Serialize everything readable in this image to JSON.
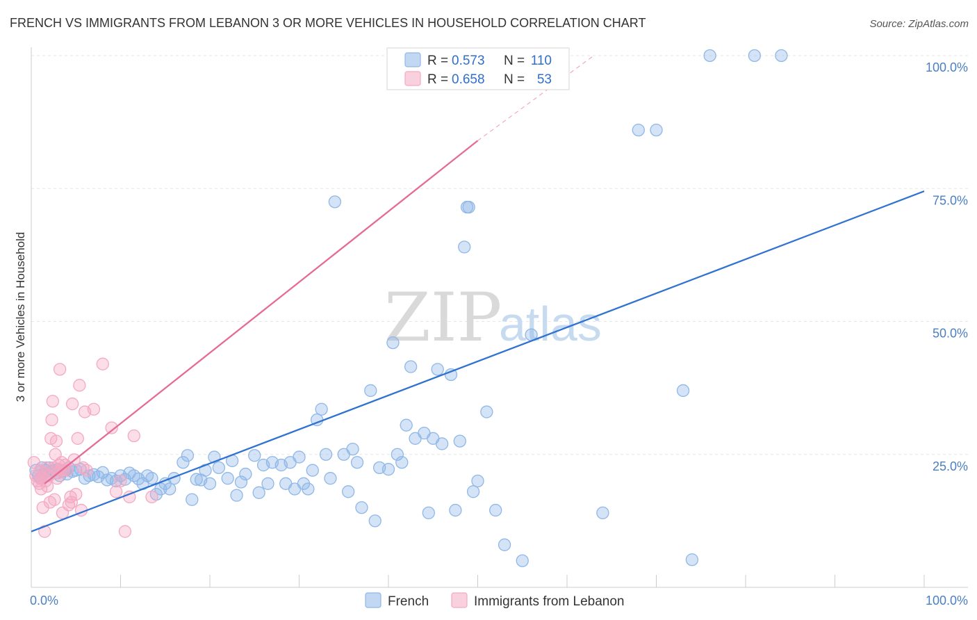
{
  "chart_data": {
    "type": "scatter",
    "title": "FRENCH VS IMMIGRANTS FROM LEBANON 3 OR MORE VEHICLES IN HOUSEHOLD CORRELATION CHART",
    "source": "Source: ZipAtlas.com",
    "ylabel": "3 or more Vehicles in Household",
    "xlabel": "",
    "xlim": [
      0,
      100
    ],
    "ylim": [
      0,
      100
    ],
    "x_tick_labels": {
      "left": "0.0%",
      "right": "100.0%"
    },
    "y_ticks": [
      {
        "value": 25,
        "label": "25.0%"
      },
      {
        "value": 50,
        "label": "50.0%"
      },
      {
        "value": 75,
        "label": "75.0%"
      },
      {
        "value": 100,
        "label": "100.0%"
      }
    ],
    "grid": true,
    "watermark": {
      "zip": "ZIP",
      "atlas": "atlas"
    },
    "legend_position": "top-center",
    "stats": [
      {
        "series": "French",
        "r_label": "R =",
        "r": "0.573",
        "n_label": "N =",
        "n": "110"
      },
      {
        "series": "Immigrants from Lebanon",
        "r_label": "R =",
        "r": "0.658",
        "n_label": "N =",
        "n": "53"
      }
    ],
    "series": [
      {
        "name": "French",
        "color": "#8fb7e8",
        "line_color": "#2f72d0",
        "trend": {
          "x": [
            0,
            100
          ],
          "y": [
            10.5,
            74.5
          ]
        },
        "points": [
          [
            0.5,
            22
          ],
          [
            0.8,
            21
          ],
          [
            1,
            20.5
          ],
          [
            1.2,
            22.5
          ],
          [
            1.4,
            21.5
          ],
          [
            1.6,
            22
          ],
          [
            1.8,
            21
          ],
          [
            2,
            22.5
          ],
          [
            2.2,
            21.8
          ],
          [
            2.5,
            22
          ],
          [
            2.8,
            21.5
          ],
          [
            3,
            22.2
          ],
          [
            3.2,
            21
          ],
          [
            3.5,
            21.8
          ],
          [
            3.8,
            22
          ],
          [
            4,
            21.3
          ],
          [
            4.2,
            22.5
          ],
          [
            4.6,
            21.8
          ],
          [
            5,
            22
          ],
          [
            5.5,
            22.2
          ],
          [
            6,
            20.5
          ],
          [
            6.5,
            21
          ],
          [
            7,
            21.2
          ],
          [
            7.5,
            20.8
          ],
          [
            8,
            21.6
          ],
          [
            8.5,
            20.2
          ],
          [
            9,
            20.5
          ],
          [
            9.5,
            20
          ],
          [
            10,
            21
          ],
          [
            10.5,
            20.3
          ],
          [
            11,
            21.5
          ],
          [
            11.5,
            21
          ],
          [
            12,
            20.4
          ],
          [
            12.5,
            19.5
          ],
          [
            13,
            21
          ],
          [
            13.5,
            20.5
          ],
          [
            14,
            17.5
          ],
          [
            14.5,
            18.5
          ],
          [
            15,
            19.5
          ],
          [
            15.5,
            18.5
          ],
          [
            16,
            20.5
          ],
          [
            17,
            23.5
          ],
          [
            17.5,
            24.8
          ],
          [
            18,
            16.5
          ],
          [
            18.5,
            20.3
          ],
          [
            19,
            20.2
          ],
          [
            19.5,
            22
          ],
          [
            20,
            19.5
          ],
          [
            20.5,
            24.5
          ],
          [
            21,
            22.5
          ],
          [
            22,
            20.5
          ],
          [
            22.5,
            23.8
          ],
          [
            23,
            17.3
          ],
          [
            23.5,
            19.8
          ],
          [
            24,
            21.3
          ],
          [
            25,
            24.8
          ],
          [
            25.5,
            17.8
          ],
          [
            26,
            23
          ],
          [
            26.5,
            19.5
          ],
          [
            27,
            23.5
          ],
          [
            28,
            23
          ],
          [
            28.5,
            19.5
          ],
          [
            29,
            23.5
          ],
          [
            29.5,
            18.5
          ],
          [
            30,
            24.5
          ],
          [
            30.5,
            19.5
          ],
          [
            31,
            18.5
          ],
          [
            31.5,
            22
          ],
          [
            32,
            31.5
          ],
          [
            32.5,
            33.5
          ],
          [
            33,
            25
          ],
          [
            33.5,
            20.5
          ],
          [
            34,
            72.5
          ],
          [
            35,
            25
          ],
          [
            35.5,
            18
          ],
          [
            36,
            26
          ],
          [
            36.5,
            23.5
          ],
          [
            37,
            15
          ],
          [
            38,
            37
          ],
          [
            38.5,
            12.5
          ],
          [
            39,
            22.5
          ],
          [
            40,
            22.2
          ],
          [
            40.5,
            46
          ],
          [
            41,
            25
          ],
          [
            41.5,
            23.5
          ],
          [
            42,
            30.5
          ],
          [
            42.5,
            41.5
          ],
          [
            43,
            28
          ],
          [
            44,
            29
          ],
          [
            44.5,
            14
          ],
          [
            45,
            28
          ],
          [
            45.5,
            41
          ],
          [
            46,
            27
          ],
          [
            47,
            40
          ],
          [
            47.5,
            14.5
          ],
          [
            48,
            27.5
          ],
          [
            48.5,
            64
          ],
          [
            48.8,
            71.5
          ],
          [
            49,
            71.5
          ],
          [
            49.5,
            18
          ],
          [
            50,
            20
          ],
          [
            51,
            33
          ],
          [
            52,
            14.5
          ],
          [
            53,
            8
          ],
          [
            55,
            5
          ],
          [
            56,
            47.5
          ],
          [
            64,
            14
          ],
          [
            68,
            86
          ],
          [
            70,
            86
          ],
          [
            73,
            37
          ],
          [
            74,
            5.2
          ],
          [
            76,
            100
          ],
          [
            81,
            100
          ],
          [
            84,
            100
          ]
        ]
      },
      {
        "name": "Immigrants from Lebanon",
        "color": "#f4a9c2",
        "line_color": "#e56b95",
        "trend": {
          "x": [
            1.5,
            50
          ],
          "y": [
            19.5,
            84
          ]
        },
        "trend_dashed": {
          "x": [
            50,
            63
          ],
          "y": [
            84,
            100
          ]
        },
        "points": [
          [
            0.3,
            23.5
          ],
          [
            0.5,
            21
          ],
          [
            0.7,
            20
          ],
          [
            0.9,
            19.5
          ],
          [
            1,
            22
          ],
          [
            1.1,
            18.5
          ],
          [
            1.2,
            20.5
          ],
          [
            1.3,
            15
          ],
          [
            1.4,
            21.5
          ],
          [
            1.5,
            10.5
          ],
          [
            1.6,
            20
          ],
          [
            1.7,
            22.5
          ],
          [
            1.8,
            19
          ],
          [
            2,
            21
          ],
          [
            2.1,
            16
          ],
          [
            2.2,
            28
          ],
          [
            2.3,
            31.5
          ],
          [
            2.4,
            35
          ],
          [
            2.5,
            22.5
          ],
          [
            2.6,
            16.5
          ],
          [
            2.7,
            25
          ],
          [
            2.8,
            27.5
          ],
          [
            2.9,
            20.5
          ],
          [
            3,
            21.5
          ],
          [
            3.1,
            23
          ],
          [
            3.2,
            41
          ],
          [
            3.3,
            22
          ],
          [
            3.4,
            23.5
          ],
          [
            3.5,
            14
          ],
          [
            3.6,
            22
          ],
          [
            3.8,
            23
          ],
          [
            4,
            22
          ],
          [
            4.2,
            15.5
          ],
          [
            4.4,
            17
          ],
          [
            4.5,
            16
          ],
          [
            4.6,
            34.5
          ],
          [
            4.8,
            24
          ],
          [
            5,
            17.5
          ],
          [
            5.2,
            28
          ],
          [
            5.4,
            38
          ],
          [
            5.6,
            14.5
          ],
          [
            5.8,
            22.5
          ],
          [
            6,
            33
          ],
          [
            6.2,
            22
          ],
          [
            7,
            33.5
          ],
          [
            8,
            42
          ],
          [
            9,
            30
          ],
          [
            9.5,
            18
          ],
          [
            10,
            20
          ],
          [
            10.5,
            10.5
          ],
          [
            11,
            17
          ],
          [
            11.5,
            28.5
          ],
          [
            13.5,
            17
          ]
        ]
      }
    ]
  }
}
